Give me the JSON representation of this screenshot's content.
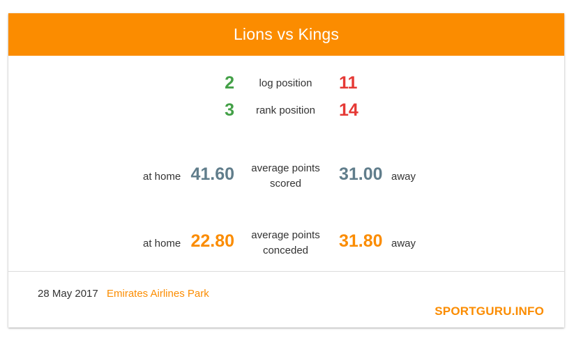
{
  "title": "Lions vs Kings",
  "log_position": {
    "label": "log position",
    "home": "2",
    "away": "11"
  },
  "rank_position": {
    "label": "rank position",
    "home": "3",
    "away": "14"
  },
  "points_scored": {
    "label_line1": "average points",
    "label_line2": "scored",
    "home_label": "at home",
    "home_value": "41.60",
    "away_value": "31.00",
    "away_label": "away"
  },
  "points_conceded": {
    "label_line1": "average points",
    "label_line2": "conceded",
    "home_label": "at home",
    "home_value": "22.80",
    "away_value": "31.80",
    "away_label": "away"
  },
  "footer": {
    "date": "28 May 2017",
    "venue": "Emirates Airlines Park",
    "brand": "SPORTGURU.INFO"
  },
  "colors": {
    "accent": "#fb8c00",
    "home_position": "#43a047",
    "away_position": "#e53935",
    "scored": "#607d8b"
  }
}
